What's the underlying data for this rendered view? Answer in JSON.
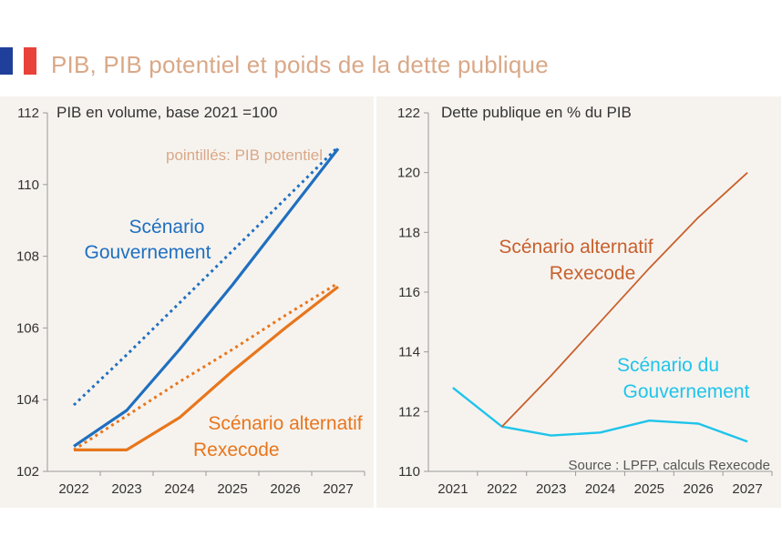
{
  "header": {
    "title": "PIB, PIB potentiel et poids de la dette publique",
    "flag_colors": [
      "#1f3f9a",
      "#ffffff",
      "#e8423a"
    ]
  },
  "colors": {
    "gouvernement": "#1f6fbf",
    "rexecode": "#e8761c",
    "rexecode_debt": "#c8602c",
    "gouvernement_debt": "#1fc4ea",
    "potentiel_note": "#d9a887",
    "panel_bg": "#f6f3ef",
    "axis_text": "#333333"
  },
  "chart_data": [
    {
      "type": "line",
      "title": "PIB en volume, base 2021 =100",
      "note": "pointillés: PIB potentiel",
      "x": [
        "2022",
        "2023",
        "2024",
        "2025",
        "2026",
        "2027"
      ],
      "yticks": [
        102,
        104,
        106,
        108,
        110,
        112
      ],
      "ylim": [
        102,
        112
      ],
      "grid": false,
      "series": [
        {
          "name": "Scénario Gouvernement",
          "style": "solid",
          "color_key": "gouvernement",
          "values": [
            102.7,
            103.7,
            105.4,
            107.2,
            109.1,
            111.0
          ]
        },
        {
          "name": "Scénario Gouvernement",
          "style": "dotted",
          "color_key": "gouvernement",
          "values": [
            103.85,
            105.25,
            106.7,
            108.15,
            109.6,
            111.05
          ]
        },
        {
          "name": "Scénario alternatif Rexecode",
          "style": "solid",
          "color_key": "rexecode",
          "values": [
            102.6,
            102.6,
            103.5,
            104.8,
            106.0,
            107.15
          ]
        },
        {
          "name": "Scénario alternatif Rexecode",
          "style": "dotted",
          "color_key": "rexecode",
          "values": [
            102.6,
            103.55,
            104.5,
            105.4,
            106.35,
            107.25
          ]
        }
      ],
      "labels": [
        {
          "text": "Scénario",
          "color_key": "gouvernement"
        },
        {
          "text": "Gouvernement",
          "color_key": "gouvernement"
        },
        {
          "text": "Scénario alternatif",
          "color_key": "rexecode"
        },
        {
          "text": "Rexecode",
          "color_key": "rexecode"
        }
      ]
    },
    {
      "type": "line",
      "title": "Dette publique en % du PIB",
      "source": "Source : LPFP, calculs Rexecode",
      "x": [
        "2021",
        "2022",
        "2023",
        "2024",
        "2025",
        "2026",
        "2027"
      ],
      "yticks": [
        110,
        112,
        114,
        116,
        118,
        120,
        122
      ],
      "ylim": [
        110,
        122
      ],
      "grid": false,
      "series": [
        {
          "name": "Scénario du Gouvernement",
          "style": "solid",
          "color_key": "gouvernement_debt",
          "x": [
            "2021",
            "2022",
            "2023",
            "2024",
            "2025",
            "2026",
            "2027"
          ],
          "values": [
            112.8,
            111.5,
            111.2,
            111.3,
            111.7,
            111.6,
            111.0
          ]
        },
        {
          "name": "Scénario alternatif Rexecode",
          "style": "solid",
          "color_key": "rexecode_debt",
          "x": [
            "2022",
            "2023",
            "2024",
            "2025",
            "2026",
            "2027"
          ],
          "values": [
            111.5,
            113.2,
            115.0,
            116.8,
            118.5,
            120.0
          ]
        }
      ],
      "labels": [
        {
          "text": "Scénario alternatif",
          "color_key": "rexecode_debt"
        },
        {
          "text": "Rexecode",
          "color_key": "rexecode_debt"
        },
        {
          "text": "Scénario du",
          "color_key": "gouvernement_debt"
        },
        {
          "text": "Gouvernement",
          "color_key": "gouvernement_debt"
        }
      ]
    }
  ]
}
